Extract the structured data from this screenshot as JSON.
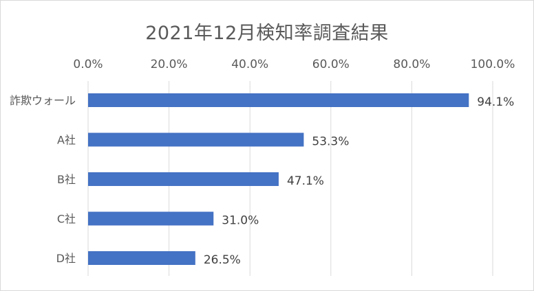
{
  "chart_data": {
    "type": "bar",
    "orientation": "horizontal",
    "title": "2021年12月検知率調査結果",
    "categories": [
      "詐欺ウォール",
      "A社",
      "B社",
      "C社",
      "D社"
    ],
    "values": [
      94.1,
      53.3,
      47.1,
      31.0,
      26.5
    ],
    "value_labels": [
      "94.1%",
      "53.3%",
      "47.1%",
      "31.0%",
      "26.5%"
    ],
    "x_ticks": [
      "0.0%",
      "20.0%",
      "40.0%",
      "60.0%",
      "80.0%",
      "100.0%"
    ],
    "xlim": [
      0,
      100
    ],
    "x_axis_position": "top",
    "grid": true,
    "legend": "none",
    "bar_color": "#4472c4",
    "gridline_color": "#d9d9d9",
    "text_color": "#595959"
  }
}
